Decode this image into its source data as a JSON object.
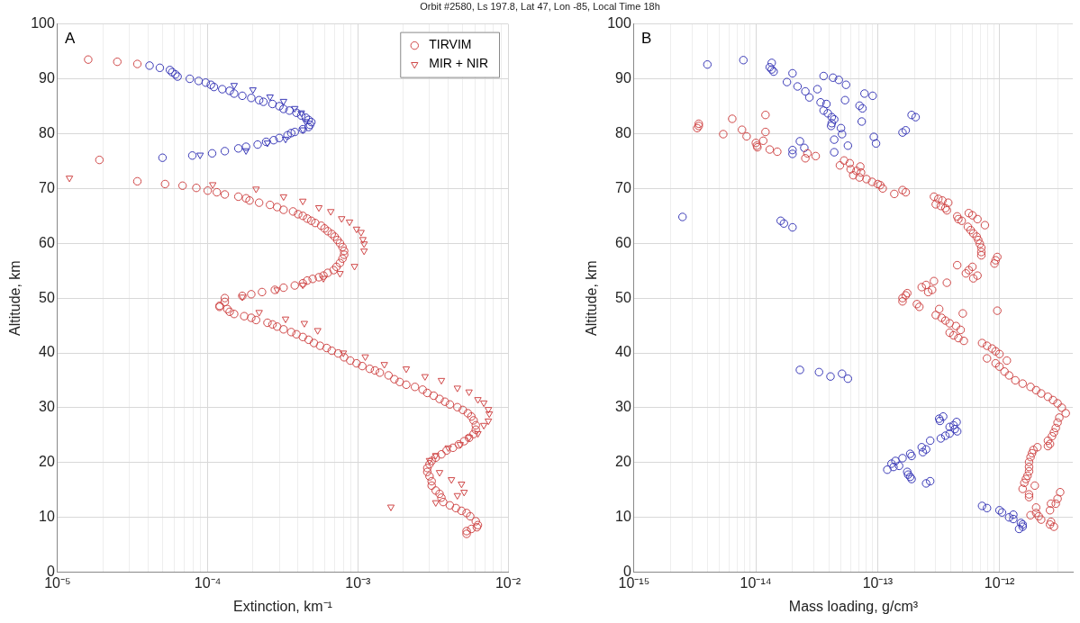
{
  "chart_data": [
    {
      "type": "scatter",
      "title": "Orbit #2580, Ls 197.8, Lat 47, Lon -85, Local Time 18h",
      "xlabel": "Extinction, km⁻¹",
      "ylabel": "Altitude, km",
      "annotations": [
        "A"
      ],
      "log": "x",
      "grid": true,
      "legend": "top right",
      "xlim": [
        1e-05,
        0.01
      ],
      "xticks": [
        {
          "value": 1e-05,
          "label": "10⁻⁵"
        },
        {
          "value": 2e-05,
          "label": null
        },
        {
          "value": 3e-05,
          "label": null
        },
        {
          "value": 4e-05,
          "label": null
        },
        {
          "value": 5e-05,
          "label": null
        },
        {
          "value": 6e-05,
          "label": null
        },
        {
          "value": 7e-05,
          "label": null
        },
        {
          "value": 8e-05,
          "label": null
        },
        {
          "value": 9e-05,
          "label": null
        },
        {
          "value": 0.0001,
          "label": "10⁻⁴"
        },
        {
          "value": 0.0002,
          "label": null
        },
        {
          "value": 0.0003,
          "label": null
        },
        {
          "value": 0.0004,
          "label": null
        },
        {
          "value": 0.0005,
          "label": null
        },
        {
          "value": 0.0006,
          "label": null
        },
        {
          "value": 0.0007,
          "label": null
        },
        {
          "value": 0.0008,
          "label": null
        },
        {
          "value": 0.0009,
          "label": null
        },
        {
          "value": 0.001,
          "label": "10⁻³"
        },
        {
          "value": 0.002,
          "label": null
        },
        {
          "value": 0.003,
          "label": null
        },
        {
          "value": 0.004,
          "label": null
        },
        {
          "value": 0.005,
          "label": null
        },
        {
          "value": 0.006,
          "label": null
        },
        {
          "value": 0.007,
          "label": null
        },
        {
          "value": 0.008,
          "label": null
        },
        {
          "value": 0.009,
          "label": null
        },
        {
          "value": 0.01,
          "label": "10⁻²"
        }
      ],
      "ylim": [
        0,
        100
      ],
      "yticks": [
        0,
        10,
        20,
        30,
        40,
        50,
        60,
        70,
        80,
        90,
        100
      ],
      "series": [
        {
          "name": "TIRVIM",
          "color": "#d04848",
          "marker": "circle",
          "x": [
            1.6e-05,
            2.5e-05,
            3.4e-05,
            1.9e-05,
            3.4e-05,
            5.2e-05,
            6.8e-05,
            8.4e-05,
            0.0001,
            0.000115,
            0.00013,
            0.00016,
            0.00018,
            0.00019,
            0.00022,
            0.00026,
            0.00029,
            0.00032,
            0.00037,
            0.0004,
            0.00043,
            0.00046,
            0.00049,
            0.00052,
            0.00057,
            0.0006,
            0.00063,
            0.00067,
            0.0007,
            0.00073,
            0.00076,
            0.00079,
            0.00081,
            0.00081,
            0.00079,
            0.00076,
            0.00072,
            0.00069,
            0.00063,
            0.00059,
            0.00055,
            0.0005,
            0.00046,
            0.00043,
            0.00038,
            0.00032,
            0.00028,
            0.00023,
            0.000195,
            0.00017,
            0.00013,
            0.00013,
            0.00012,
            0.00012,
            0.000135,
            0.00014,
            0.00015,
            0.000175,
            0.000195,
            0.00021,
            0.00025,
            0.00027,
            0.00029,
            0.00032,
            0.00036,
            0.00039,
            0.00043,
            0.00047,
            0.00051,
            0.00056,
            0.00062,
            0.00067,
            0.00074,
            0.00081,
            0.00089,
            0.00098,
            0.00107,
            0.0012,
            0.0013,
            0.0014,
            0.0016,
            0.00175,
            0.0019,
            0.0021,
            0.0024,
            0.0027,
            0.0029,
            0.0032,
            0.0035,
            0.0038,
            0.0041,
            0.0046,
            0.005,
            0.0054,
            0.0057,
            0.0059,
            0.0061,
            0.0061,
            0.0059,
            0.0055,
            0.0051,
            0.0047,
            0.0043,
            0.0039,
            0.0036,
            0.0033,
            0.0031,
            0.003,
            0.0029,
            0.0029,
            0.003,
            0.0031,
            0.0031,
            0.0033,
            0.0035,
            0.0036,
            0.0037,
            0.0041,
            0.0045,
            0.0049,
            0.0053,
            0.0056,
            0.0061,
            0.0063,
            0.0062,
            0.0057,
            0.0053,
            0.0053
          ],
          "values": [
            93.5,
            93.1,
            92.7,
            75.2,
            71.3,
            70.8,
            70.5,
            70.1,
            69.6,
            69.3,
            68.9,
            68.5,
            68.2,
            67.8,
            67.4,
            67.0,
            66.6,
            66.1,
            65.8,
            65.3,
            65.0,
            64.5,
            64.1,
            63.7,
            63.2,
            62.7,
            62.2,
            61.7,
            61.2,
            60.6,
            60.0,
            59.3,
            58.6,
            57.9,
            57.2,
            56.4,
            55.7,
            55.1,
            54.6,
            54.1,
            53.8,
            53.5,
            53.2,
            52.7,
            52.3,
            51.9,
            51.5,
            51.1,
            50.7,
            50.4,
            50.0,
            49.3,
            48.6,
            48.4,
            48.0,
            47.5,
            47.1,
            46.7,
            46.4,
            46.0,
            45.5,
            45.2,
            44.8,
            44.3,
            43.8,
            43.4,
            42.9,
            42.4,
            41.8,
            41.3,
            40.9,
            40.4,
            39.9,
            39.2,
            38.6,
            38.1,
            37.6,
            37.1,
            36.8,
            36.4,
            35.9,
            35.2,
            34.7,
            34.2,
            33.8,
            33.3,
            32.7,
            32.2,
            31.6,
            31.1,
            30.6,
            30.1,
            29.6,
            29.0,
            28.4,
            27.7,
            26.8,
            26.0,
            25.2,
            24.5,
            23.9,
            23.3,
            22.7,
            22.2,
            21.5,
            20.9,
            20.3,
            19.7,
            19.0,
            18.3,
            17.5,
            16.6,
            15.8,
            14.9,
            14.3,
            13.6,
            12.8,
            12.2,
            11.7,
            11.2,
            10.8,
            10.2,
            9.3,
            8.6,
            8.2,
            7.9,
            7.5,
            7.0
          ]
        },
        {
          "color": "#3a3ab8",
          "marker": "circle",
          "x": [
            4.1e-05,
            4.8e-05,
            5.6e-05,
            5.8e-05,
            6.1e-05,
            6.3e-05,
            7.6e-05,
            8.7e-05,
            9.7e-05,
            0.000105,
            0.00011,
            0.000125,
            0.00014,
            0.00015,
            0.00017,
            0.000195,
            0.00022,
            0.000235,
            0.00027,
            0.0003,
            0.00032,
            0.00035,
            0.00039,
            0.00042,
            0.00045,
            0.00047,
            0.00049,
            0.00048,
            0.00047,
            0.00043,
            0.00038,
            0.00036,
            0.00034,
            0.0003,
            0.000275,
            0.000245,
            0.000215,
            0.00018,
            0.00016,
            0.00013,
            0.000107,
            7.9e-05,
            5e-05
          ],
          "values": [
            92.4,
            92.0,
            91.6,
            91.2,
            90.8,
            90.4,
            90.0,
            89.6,
            89.3,
            88.9,
            88.5,
            88.1,
            87.8,
            87.3,
            86.9,
            86.5,
            86.1,
            85.8,
            85.4,
            85.0,
            84.5,
            84.2,
            83.8,
            83.3,
            82.9,
            82.5,
            82.1,
            81.6,
            81.2,
            80.8,
            80.3,
            80.1,
            79.7,
            79.2,
            78.8,
            78.5,
            78.0,
            77.6,
            77.3,
            76.8,
            76.4,
            76.0,
            75.6
          ]
        },
        {
          "name": "MIR + NIR",
          "color": "#d04848",
          "marker": "triangle",
          "x": [
            1.2e-05,
            0.000108,
            0.00021,
            0.00032,
            0.00043,
            0.00055,
            0.00066,
            0.00078,
            0.00088,
            0.00098,
            0.00105,
            0.00108,
            0.0011,
            0.0011,
            0.00095,
            0.00076,
            0.00059,
            0.00043,
            0.00029,
            0.00017,
            0.00022,
            0.00033,
            0.00044,
            0.00054,
            0.0008,
            0.00112,
            0.0015,
            0.0021,
            0.0028,
            0.0036,
            0.0046,
            0.0055,
            0.0063,
            0.0069,
            0.0074,
            0.0075,
            0.0074,
            0.0069,
            0.0063,
            0.0055,
            0.0048,
            0.004,
            0.0033,
            0.003,
            0.0035,
            0.0042,
            0.0049,
            0.0051,
            0.0046,
            0.0033,
            0.00166
          ],
          "values": [
            71.9,
            70.7,
            69.9,
            68.5,
            67.7,
            66.5,
            65.8,
            64.5,
            63.9,
            62.6,
            62.0,
            60.7,
            59.9,
            58.6,
            55.8,
            54.5,
            53.6,
            52.4,
            51.5,
            50.2,
            47.4,
            46.2,
            45.4,
            44.1,
            40.0,
            39.3,
            37.9,
            37.1,
            35.7,
            35.0,
            33.6,
            32.9,
            31.5,
            30.9,
            29.7,
            28.9,
            27.6,
            26.8,
            25.3,
            24.6,
            23.3,
            22.7,
            21.3,
            20.4,
            18.2,
            16.9,
            16.1,
            14.6,
            14.0,
            12.7,
            11.9
          ]
        },
        {
          "color": "#3a3ab8",
          "marker": "triangle",
          "x": [
            0.00015,
            0.0002,
            0.00026,
            0.00032,
            0.00038,
            0.00042,
            0.00045,
            0.00043,
            0.00033,
            0.00025,
            0.00018,
            8.9e-05
          ],
          "values": [
            88.8,
            88.0,
            86.7,
            85.9,
            84.6,
            83.8,
            82.2,
            80.7,
            79.0,
            78.3,
            76.9,
            76.1
          ]
        }
      ]
    },
    {
      "type": "scatter",
      "xlabel": "Mass loading, g/cm³",
      "ylabel": "Altitude, km",
      "annotations": [
        "B"
      ],
      "log": "x",
      "grid": true,
      "xlim": [
        1e-15,
        4e-12
      ],
      "xticks": [
        {
          "value": 1e-15,
          "label": "10⁻¹⁵"
        },
        {
          "value": 2e-15,
          "label": null
        },
        {
          "value": 3e-15,
          "label": null
        },
        {
          "value": 4e-15,
          "label": null
        },
        {
          "value": 5e-15,
          "label": null
        },
        {
          "value": 6e-15,
          "label": null
        },
        {
          "value": 7e-15,
          "label": null
        },
        {
          "value": 8e-15,
          "label": null
        },
        {
          "value": 9e-15,
          "label": null
        },
        {
          "value": 1e-14,
          "label": "10⁻¹⁴"
        },
        {
          "value": 2e-14,
          "label": null
        },
        {
          "value": 3e-14,
          "label": null
        },
        {
          "value": 4e-14,
          "label": null
        },
        {
          "value": 5e-14,
          "label": null
        },
        {
          "value": 6e-14,
          "label": null
        },
        {
          "value": 7e-14,
          "label": null
        },
        {
          "value": 8e-14,
          "label": null
        },
        {
          "value": 9e-14,
          "label": null
        },
        {
          "value": 1e-13,
          "label": "10⁻¹³"
        },
        {
          "value": 2e-13,
          "label": null
        },
        {
          "value": 3e-13,
          "label": null
        },
        {
          "value": 4e-13,
          "label": null
        },
        {
          "value": 5e-13,
          "label": null
        },
        {
          "value": 6e-13,
          "label": null
        },
        {
          "value": 7e-13,
          "label": null
        },
        {
          "value": 8e-13,
          "label": null
        },
        {
          "value": 9e-13,
          "label": null
        },
        {
          "value": 1e-12,
          "label": "10⁻¹²"
        },
        {
          "value": 2e-12,
          "label": null
        },
        {
          "value": 3e-12,
          "label": null
        }
      ],
      "ylim": [
        0,
        100
      ],
      "yticks": [
        0,
        10,
        20,
        30,
        40,
        50,
        60,
        70,
        80,
        90,
        100
      ],
      "series": [
        {
          "color": "#d04848",
          "marker": "circle",
          "x": [
            3.4e-15,
            3.4e-15,
            3.3e-15,
            5.4e-15,
            6.4e-15,
            7.7e-15,
            8.4e-15,
            1.2e-14,
            1.2e-14,
            1.15e-14,
            1e-14,
            1.02e-14,
            1.03e-14,
            1.3e-14,
            1.5e-14,
            2.55e-14,
            2.65e-14,
            3.1e-14,
            4.9e-14,
            5.3e-14,
            5.9e-14,
            6e-14,
            6.3e-14,
            6.7e-14,
            7.2e-14,
            7.1e-14,
            7.3e-14,
            8.1e-14,
            9e-14,
            1e-13,
            1.05e-13,
            1.1e-13,
            1.37e-13,
            1.6e-13,
            1.7e-13,
            2.9e-13,
            3.15e-13,
            3.4e-13,
            3.8e-13,
            3e-13,
            3.3e-13,
            3.6e-13,
            3.7e-13,
            4.5e-13,
            4.6e-13,
            4.9e-13,
            5.5e-13,
            5.6e-13,
            6e-13,
            6.6e-13,
            7.6e-13,
            5.8e-13,
            6.1e-13,
            6.5e-13,
            6.7e-13,
            6.9e-13,
            7.1e-13,
            7.1e-13,
            7.1e-13,
            9.1e-13,
            9.3e-13,
            9.6e-13,
            4.5e-13,
            5.3e-13,
            5.6e-13,
            6e-13,
            6.1e-13,
            6.6e-13,
            2.3e-13,
            2.5e-13,
            2.6e-13,
            2.8e-13,
            2.9e-13,
            3.7e-13,
            1.6e-13,
            1.6e-13,
            1.7e-13,
            1.75e-13,
            2.1e-13,
            2.2e-13,
            3.2e-13,
            5e-13,
            9.6e-13,
            3e-13,
            3.35e-13,
            3.6e-13,
            3.9e-13,
            4.4e-13,
            4.8e-13,
            3.9e-13,
            4.2e-13,
            4.6e-13,
            5.1e-13,
            7.2e-13,
            7.9e-13,
            8.7e-13,
            9.3e-13,
            1e-12,
            7.9e-13,
            9.3e-13,
            1e-12,
            1.15e-12,
            1.1e-12,
            1.2e-12,
            1.35e-12,
            1.55e-12,
            1.8e-12,
            2e-12,
            2.2e-12,
            2.5e-12,
            2.75e-12,
            3e-12,
            3.25e-12,
            3.5e-12,
            3.1e-12,
            3e-12,
            2.9e-12,
            2.8e-12,
            2.7e-12,
            2.5e-12,
            2.6e-12,
            2.5e-12,
            2.05e-12,
            1.9e-12,
            1.85e-12,
            1.8e-12,
            1.75e-12,
            1.75e-12,
            1.75e-12,
            1.7e-12,
            1.65e-12,
            1.6e-12,
            1.55e-12,
            1.95e-12,
            1.75e-12,
            1.75e-12,
            3e-12,
            3.15e-12,
            2.65e-12,
            2.9e-12,
            2.6e-12,
            2e-12,
            2e-12,
            1.8e-12,
            2.1e-12,
            2.2e-12,
            2.6e-12,
            2.65e-12,
            2.8e-12
          ],
          "values": [
            81.8,
            81.4,
            81.0,
            79.9,
            82.7,
            80.7,
            79.5,
            83.4,
            80.3,
            78.7,
            78.3,
            77.8,
            77.5,
            77.1,
            76.7,
            75.5,
            76.4,
            75.9,
            74.2,
            75.1,
            74.6,
            73.5,
            72.4,
            73.2,
            74.0,
            72.0,
            72.9,
            71.7,
            71.2,
            70.8,
            70.6,
            70.0,
            69.0,
            69.7,
            69.3,
            68.5,
            68.1,
            67.8,
            67.4,
            67.1,
            66.8,
            66.4,
            66.0,
            64.9,
            64.4,
            64.1,
            63.0,
            65.5,
            65.1,
            64.4,
            63.3,
            62.4,
            61.8,
            61.2,
            60.6,
            59.9,
            59.2,
            58.4,
            57.8,
            56.3,
            56.9,
            57.5,
            56.0,
            54.5,
            55.1,
            55.7,
            53.6,
            54.1,
            52.0,
            52.4,
            51.1,
            51.5,
            53.1,
            52.8,
            50.0,
            49.4,
            50.5,
            50.9,
            48.9,
            48.4,
            48.0,
            47.2,
            47.7,
            46.9,
            46.4,
            45.9,
            45.4,
            44.9,
            44.2,
            43.7,
            43.2,
            42.7,
            42.2,
            41.8,
            41.3,
            40.8,
            40.3,
            39.8,
            39.0,
            38.1,
            37.5,
            38.6,
            36.6,
            35.9,
            35.0,
            34.4,
            33.8,
            33.2,
            32.6,
            32.0,
            31.4,
            30.8,
            30.0,
            29.0,
            28.2,
            27.3,
            26.3,
            25.5,
            24.8,
            24.0,
            23.4,
            23.0,
            22.8,
            22.3,
            21.7,
            21.0,
            20.1,
            19.2,
            18.4,
            17.6,
            17.0,
            16.3,
            15.2,
            15.8,
            14.2,
            13.7,
            13.4,
            14.6,
            12.5,
            12.5,
            11.3,
            11.8,
            10.8,
            10.4,
            10.2,
            9.6,
            8.7,
            9.2,
            8.3
          ]
        },
        {
          "color": "#3a3ab8",
          "marker": "circle",
          "x": [
            4e-15,
            7.9e-15,
            1.35e-14,
            1.3e-14,
            1.35e-14,
            1.4e-14,
            2e-14,
            1.8e-14,
            2.2e-14,
            2.55e-14,
            2.75e-14,
            3.2e-14,
            3.6e-14,
            4.3e-14,
            4.8e-14,
            5.5e-14,
            3.4e-14,
            3.8e-14,
            3.6e-14,
            3.9e-14,
            4.2e-14,
            4.4e-14,
            4.2e-14,
            4.15e-14,
            5e-14,
            5.1e-14,
            4.4e-14,
            5.7e-14,
            4.4e-14,
            5.4e-14,
            7.8e-14,
            9.1e-14,
            7.1e-14,
            7.5e-14,
            7.4e-14,
            9.3e-14,
            9.7e-14,
            1.9e-13,
            2.05e-13,
            1.6e-13,
            1.7e-13,
            2.3e-14,
            2.5e-14,
            2e-14,
            2e-14,
            2.5e-15,
            1.6e-14,
            1.7e-14,
            2e-14,
            2.3e-14,
            3.3e-14,
            4.1e-14,
            5.1e-14,
            5.7e-14,
            1.2e-13,
            1.3e-13,
            1.4e-13,
            1.35e-13,
            1.5e-13,
            1.6e-13,
            1.85e-13,
            1.9e-13,
            1.75e-13,
            1.78e-13,
            1.85e-13,
            1.9e-13,
            2.3e-13,
            2.35e-13,
            2.5e-13,
            2.7e-13,
            2.5e-13,
            2.7e-13,
            3.2e-13,
            3.25e-13,
            3.45e-13,
            3.3e-13,
            3.6e-13,
            3.9e-13,
            3.9e-13,
            4.2e-13,
            4.3e-13,
            4.45e-13,
            4.5e-13,
            7.2e-13,
            7.9e-13,
            1e-12,
            1.05e-12,
            1.2e-12,
            1.3e-12,
            1.3e-12,
            1.45e-12,
            1.5e-12,
            1.55e-12,
            1.55e-12
          ],
          "values": [
            92.6,
            93.4,
            92.9,
            92.1,
            91.7,
            91.3,
            91.0,
            89.4,
            88.6,
            87.7,
            86.6,
            88.1,
            90.5,
            90.2,
            89.8,
            88.9,
            85.7,
            85.4,
            84.2,
            83.7,
            83.0,
            82.6,
            81.9,
            81.4,
            81.0,
            79.9,
            78.9,
            77.8,
            76.6,
            86.1,
            87.3,
            86.9,
            85.1,
            84.6,
            82.2,
            79.4,
            78.2,
            83.4,
            83.0,
            80.2,
            80.6,
            78.6,
            77.4,
            77.0,
            76.3,
            64.8,
            64.1,
            63.6,
            62.9,
            36.9,
            36.5,
            35.7,
            36.2,
            35.3,
            18.7,
            19.8,
            20.3,
            19.2,
            19.4,
            20.8,
            21.6,
            21.2,
            18.3,
            17.8,
            17.4,
            17.0,
            22.8,
            21.9,
            22.4,
            24.0,
            16.2,
            16.6,
            28.0,
            27.6,
            28.4,
            24.4,
            24.9,
            25.3,
            26.5,
            26.8,
            26.1,
            27.4,
            25.7,
            12.1,
            11.7,
            11.3,
            10.9,
            10.0,
            10.5,
            9.7,
            7.9,
            9.0,
            8.7,
            8.3
          ]
        }
      ]
    }
  ]
}
